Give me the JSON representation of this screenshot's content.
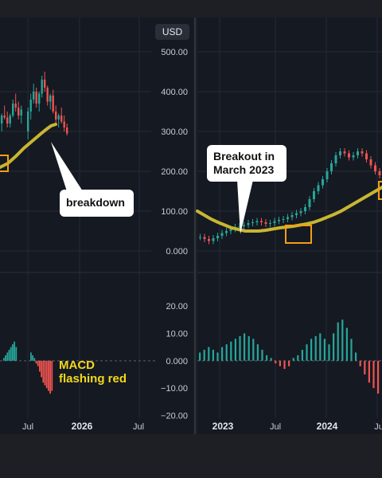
{
  "currency_badge": "USD",
  "colors": {
    "background": "#151922",
    "up": "#26a69a",
    "down": "#ef5350",
    "moving_average": "#c8b632",
    "highlight_box": "#f29f14",
    "annotation_text": "#f4d81a"
  },
  "annotations": {
    "breakdown": "breakdown",
    "breakout": "Breakout in\nMarch 2023",
    "macd": "MACD\nflashing red"
  },
  "chart_data": [
    {
      "type": "candlestick",
      "panel": "left",
      "x_tick_labels": [
        "Jul",
        "2026",
        "Jul"
      ],
      "y_tick_labels": [
        "500.00",
        "400.00",
        "300.00",
        "200.00",
        "100.00",
        "0.000"
      ],
      "ylim": [
        -30,
        530
      ],
      "ohlc_end_segment": [
        [
          300,
          360,
          280,
          350
        ],
        [
          350,
          395,
          330,
          380
        ],
        [
          380,
          420,
          370,
          400
        ],
        [
          400,
          410,
          360,
          370
        ],
        [
          370,
          400,
          350,
          395
        ],
        [
          395,
          440,
          385,
          430
        ],
        [
          430,
          450,
          400,
          410
        ],
        [
          410,
          415,
          365,
          375
        ],
        [
          375,
          395,
          355,
          390
        ],
        [
          390,
          405,
          345,
          350
        ],
        [
          350,
          365,
          320,
          330
        ],
        [
          330,
          345,
          310,
          340
        ],
        [
          340,
          360,
          320,
          325
        ],
        [
          325,
          340,
          300,
          310
        ],
        [
          310,
          320,
          290,
          295
        ]
      ],
      "moving_average_end_segment": [
        275,
        290,
        305,
        318,
        330,
        340,
        348,
        352
      ],
      "macd_histogram": [
        1,
        2,
        3,
        4,
        5,
        6,
        7,
        5,
        3,
        2,
        1,
        -1,
        -2,
        -4,
        -6,
        -8,
        -9,
        -10,
        -11,
        -12,
        -11
      ],
      "macd_y_tick_labels": [
        "20.00",
        "10.00",
        "0.000",
        "−10.00",
        "−20.00"
      ],
      "macd_ylim": [
        -21,
        27
      ]
    },
    {
      "type": "candlestick",
      "panel": "right",
      "x_tick_labels": [
        "2023",
        "Jul",
        "2024",
        "Ju"
      ],
      "ylim": [
        -30,
        530
      ],
      "close_path": [
        35,
        30,
        25,
        32,
        38,
        45,
        50,
        55,
        60,
        62,
        65,
        70,
        72,
        75,
        72,
        68,
        70,
        75,
        78,
        80,
        85,
        90,
        95,
        100,
        110,
        130,
        150,
        165,
        180,
        200,
        220,
        240,
        250,
        245,
        235,
        240,
        250,
        245,
        230,
        215,
        200,
        190
      ],
      "moving_average": [
        100,
        90,
        80,
        72,
        65,
        58,
        54,
        50,
        50,
        50,
        52,
        55,
        58,
        60,
        62,
        65,
        68,
        72,
        78,
        85,
        92,
        100,
        110,
        120,
        130,
        140,
        150,
        160,
        170
      ],
      "macd_histogram": [
        3,
        4,
        5,
        4,
        3,
        5,
        6,
        7,
        8,
        9,
        10,
        9,
        8,
        6,
        4,
        2,
        1,
        -1,
        -2,
        -3,
        -2,
        1,
        2,
        4,
        6,
        8,
        9,
        10,
        8,
        6,
        10,
        14,
        15,
        12,
        8,
        3,
        -2,
        -5,
        -8,
        -10,
        -12
      ]
    }
  ]
}
